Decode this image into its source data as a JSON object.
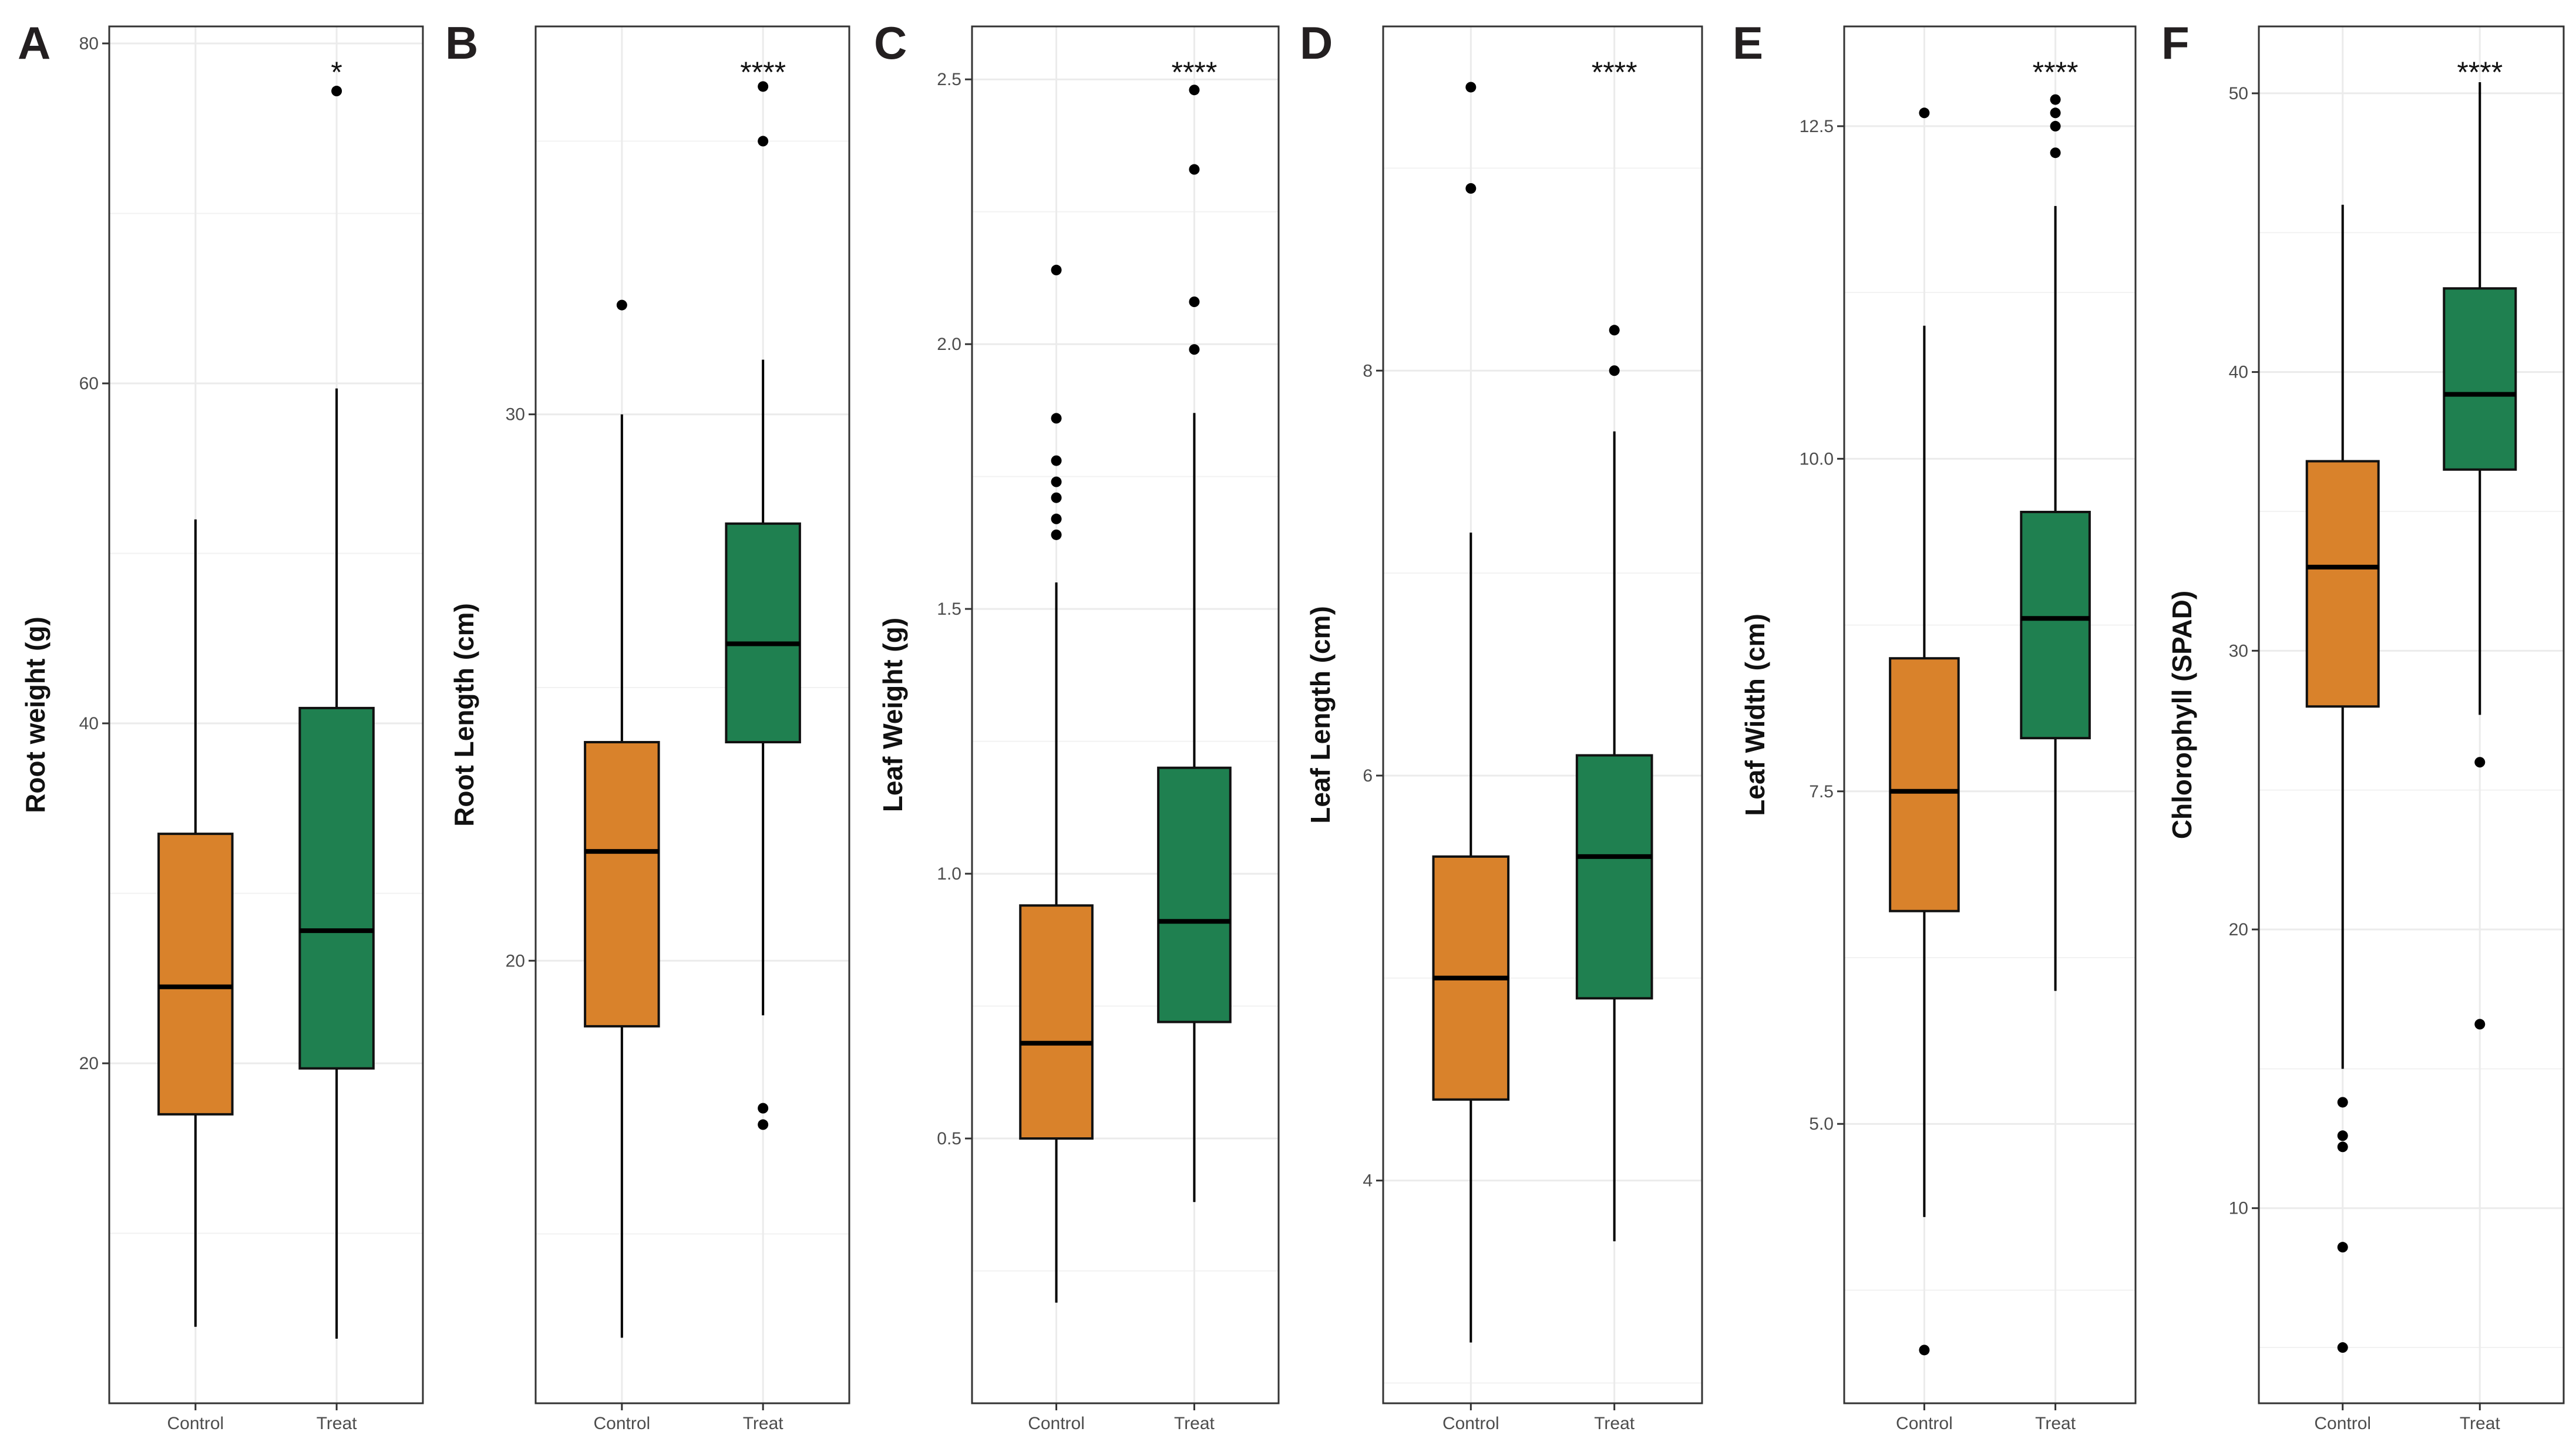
{
  "chart_data": [
    {
      "panel": "A",
      "type": "boxplot",
      "ylabel": "Root weight (g)",
      "categories": [
        "Control",
        "Treat"
      ],
      "ylim": [
        0,
        81
      ],
      "major_ticks": [
        20,
        40,
        60,
        80
      ],
      "minor_ticks": [
        10,
        30,
        50,
        70
      ],
      "significance": "*",
      "boxes": [
        {
          "name": "Control",
          "q1": 17.0,
          "median": 24.5,
          "q3": 33.5,
          "whisker_low": 4.5,
          "whisker_high": 52.0,
          "outliers": []
        },
        {
          "name": "Treat",
          "q1": 19.7,
          "median": 27.8,
          "q3": 40.9,
          "whisker_low": 3.8,
          "whisker_high": 59.7,
          "outliers": [
            77.2
          ]
        }
      ]
    },
    {
      "panel": "B",
      "type": "boxplot",
      "ylabel": "Root Length (cm)",
      "categories": [
        "Control",
        "Treat"
      ],
      "ylim": [
        11.9,
        37.1
      ],
      "major_ticks": [
        20,
        30
      ],
      "minor_ticks": [
        15,
        25,
        35
      ],
      "significance": "****",
      "boxes": [
        {
          "name": "Control",
          "q1": 18.8,
          "median": 22.0,
          "q3": 24.0,
          "whisker_low": 13.1,
          "whisker_high": 30.0,
          "outliers": [
            32.0
          ]
        },
        {
          "name": "Treat",
          "q1": 24.0,
          "median": 25.8,
          "q3": 28.0,
          "whisker_low": 19.0,
          "whisker_high": 31.0,
          "outliers": [
            36.0,
            35.0,
            17.3,
            17.0
          ]
        }
      ]
    },
    {
      "panel": "C",
      "type": "boxplot",
      "ylabel": "Leaf Weight (g)",
      "categories": [
        "Control",
        "Treat"
      ],
      "ylim": [
        0,
        2.6
      ],
      "major_ticks": [
        0.5,
        1.0,
        1.5,
        2.0,
        2.5
      ],
      "minor_ticks": [
        0.25,
        0.75,
        1.25,
        1.75,
        2.25
      ],
      "significance": "****",
      "boxes": [
        {
          "name": "Control",
          "q1": 0.5,
          "median": 0.68,
          "q3": 0.94,
          "whisker_low": 0.19,
          "whisker_high": 1.55,
          "outliers": [
            2.14,
            1.86,
            1.78,
            1.74,
            1.71,
            1.67,
            1.64
          ]
        },
        {
          "name": "Treat",
          "q1": 0.72,
          "median": 0.91,
          "q3": 1.2,
          "whisker_low": 0.38,
          "whisker_high": 1.87,
          "outliers": [
            2.48,
            2.33,
            2.08,
            1.99
          ]
        }
      ]
    },
    {
      "panel": "D",
      "type": "boxplot",
      "ylabel": "Leaf Length (cm)",
      "categories": [
        "Control",
        "Treat"
      ],
      "ylim": [
        2.9,
        9.7
      ],
      "major_ticks": [
        4,
        6,
        8
      ],
      "minor_ticks": [
        3,
        5,
        7,
        9
      ],
      "significance": "****",
      "boxes": [
        {
          "name": "Control",
          "q1": 4.4,
          "median": 5.0,
          "q3": 5.6,
          "whisker_low": 3.2,
          "whisker_high": 7.2,
          "outliers": [
            9.4,
            8.9
          ]
        },
        {
          "name": "Treat",
          "q1": 4.9,
          "median": 5.6,
          "q3": 6.1,
          "whisker_low": 3.7,
          "whisker_high": 7.7,
          "outliers": [
            8.2,
            8.0
          ]
        }
      ]
    },
    {
      "panel": "E",
      "type": "boxplot",
      "ylabel": "Leaf Width (cm)",
      "categories": [
        "Control",
        "Treat"
      ],
      "ylim": [
        2.9,
        13.25
      ],
      "major_ticks": [
        5.0,
        7.5,
        10.0,
        12.5
      ],
      "minor_ticks": [
        3.75,
        6.25,
        8.75,
        11.25
      ],
      "significance": "****",
      "boxes": [
        {
          "name": "Control",
          "q1": 6.6,
          "median": 7.5,
          "q3": 8.5,
          "whisker_low": 4.3,
          "whisker_high": 11.0,
          "outliers": [
            12.6,
            3.3
          ]
        },
        {
          "name": "Treat",
          "q1": 7.9,
          "median": 8.8,
          "q3": 9.6,
          "whisker_low": 6.0,
          "whisker_high": 11.9,
          "outliers": [
            12.7,
            12.6,
            12.5,
            12.3
          ]
        }
      ]
    },
    {
      "panel": "F",
      "type": "boxplot",
      "ylabel": "Chlorophyll (SPAD)",
      "categories": [
        "Control",
        "Treat"
      ],
      "ylim": [
        3.0,
        52.4
      ],
      "major_ticks": [
        10,
        20,
        30,
        40,
        50
      ],
      "minor_ticks": [
        5,
        15,
        25,
        35,
        45
      ],
      "significance": "****",
      "boxes": [
        {
          "name": "Control",
          "q1": 28.0,
          "median": 33.0,
          "q3": 36.8,
          "whisker_low": 15.0,
          "whisker_high": 46.0,
          "outliers": [
            13.8,
            12.6,
            12.2,
            8.6,
            5.0
          ]
        },
        {
          "name": "Treat",
          "q1": 36.5,
          "median": 39.2,
          "q3": 43.0,
          "whisker_low": 27.7,
          "whisker_high": 50.4,
          "outliers": [
            26.0,
            16.6
          ]
        }
      ]
    }
  ],
  "colors": {
    "control_fill": "#d9822b",
    "treat_fill": "#1f8050",
    "grid": "#ebebeb",
    "border": "#333333"
  }
}
